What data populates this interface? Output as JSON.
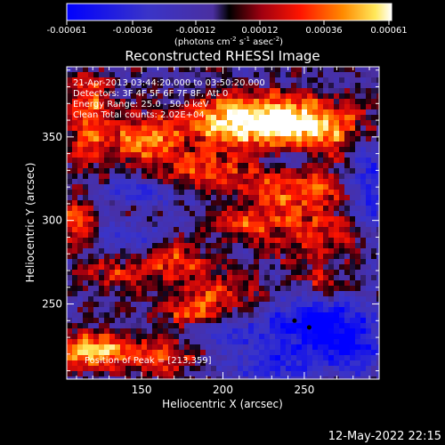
{
  "chart_data": {
    "type": "heatmap",
    "title": "Reconstructed RHESSI Image",
    "xlabel": "Heliocentric X (arcsec)",
    "ylabel": "Heliocentric Y (arcsec)",
    "xlim": [
      104,
      296
    ],
    "ylim": [
      205,
      392
    ],
    "x_ticks": [
      150,
      200,
      250
    ],
    "y_ticks": [
      250,
      300,
      350
    ],
    "colorbar": {
      "ticks": [
        "-0.00061",
        "-0.00036",
        "-0.00012",
        "0.00012",
        "0.00036",
        "0.00061"
      ],
      "range": [
        -0.00061,
        0.00061
      ],
      "unit_parts": [
        "(photons cm",
        "-2",
        " s",
        "-1",
        " asec",
        "-2",
        ")"
      ]
    },
    "info_lines": [
      "21-Apr-2013 03:44:20.000 to 03:50:20.000",
      "Detectors: 3F 4F 5F 6F 7F 8F, Att 0",
      "Energy Range: 25.0 - 50.0 keV",
      "Clean    Total counts: 2.02E+04"
    ],
    "peak_label": "Position of Peak = [213,359]",
    "peak_position": [
      213,
      359
    ],
    "hot_regions": [
      {
        "x": 213,
        "y": 359,
        "sx": 30,
        "sy": 11,
        "v": 0.00061
      },
      {
        "x": 255,
        "y": 356,
        "sx": 28,
        "sy": 12,
        "v": 0.0005
      },
      {
        "x": 150,
        "y": 348,
        "sx": 16,
        "sy": 10,
        "v": 0.00042
      },
      {
        "x": 118,
        "y": 362,
        "sx": 10,
        "sy": 20,
        "v": 0.00045
      },
      {
        "x": 185,
        "y": 328,
        "sx": 20,
        "sy": 8,
        "v": 0.0004
      },
      {
        "x": 245,
        "y": 318,
        "sx": 24,
        "sy": 10,
        "v": 0.0004
      },
      {
        "x": 110,
        "y": 300,
        "sx": 8,
        "sy": 9,
        "v": 0.00045
      },
      {
        "x": 215,
        "y": 298,
        "sx": 16,
        "sy": 6,
        "v": 0.0003
      },
      {
        "x": 170,
        "y": 275,
        "sx": 18,
        "sy": 8,
        "v": 0.00036
      },
      {
        "x": 260,
        "y": 290,
        "sx": 22,
        "sy": 12,
        "v": 0.0003
      },
      {
        "x": 130,
        "y": 268,
        "sx": 14,
        "sy": 8,
        "v": 0.00025
      },
      {
        "x": 200,
        "y": 255,
        "sx": 20,
        "sy": 8,
        "v": 0.0003
      },
      {
        "x": 180,
        "y": 245,
        "sx": 16,
        "sy": 6,
        "v": 0.0003
      },
      {
        "x": 120,
        "y": 222,
        "sx": 16,
        "sy": 8,
        "v": 0.00055
      },
      {
        "x": 160,
        "y": 218,
        "sx": 16,
        "sy": 8,
        "v": 0.0004
      },
      {
        "x": 262,
        "y": 262,
        "sx": 10,
        "sy": 6,
        "v": 0.00028
      }
    ],
    "cold_regions": [
      {
        "x": 252,
        "y": 238,
        "sx": 22,
        "sy": 12,
        "v": -0.0005
      },
      {
        "x": 280,
        "y": 225,
        "sx": 14,
        "sy": 14,
        "v": -0.0004
      },
      {
        "x": 290,
        "y": 320,
        "sx": 10,
        "sy": 25,
        "v": -0.0004
      },
      {
        "x": 240,
        "y": 338,
        "sx": 12,
        "sy": 6,
        "v": -0.0003
      },
      {
        "x": 150,
        "y": 318,
        "sx": 20,
        "sy": 6,
        "v": -0.0003
      },
      {
        "x": 230,
        "y": 215,
        "sx": 18,
        "sy": 8,
        "v": -0.00032
      },
      {
        "x": 140,
        "y": 288,
        "sx": 14,
        "sy": 6,
        "v": -0.00025
      },
      {
        "x": 200,
        "y": 232,
        "sx": 14,
        "sy": 6,
        "v": -0.00022
      }
    ]
  },
  "footer": {
    "timestamp": "12-May-2022 22:15"
  }
}
